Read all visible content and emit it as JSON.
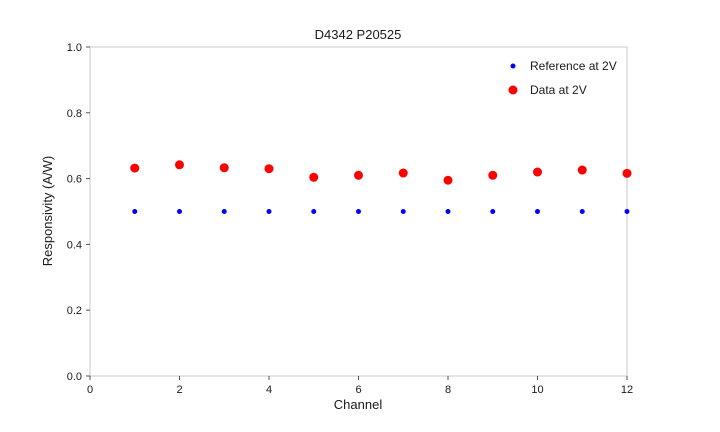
{
  "chart_data": {
    "type": "scatter",
    "title": "D4342 P20525",
    "xlabel": "Channel",
    "ylabel": "Responsivity (A/W)",
    "xlim": [
      0,
      12
    ],
    "ylim": [
      0.0,
      1.0
    ],
    "xticks": [
      0,
      2,
      4,
      6,
      8,
      10,
      12
    ],
    "yticks": [
      0.0,
      0.2,
      0.4,
      0.6,
      0.8,
      1.0
    ],
    "grid": false,
    "legend_position": "upper right",
    "x": [
      1,
      2,
      3,
      4,
      5,
      6,
      7,
      8,
      9,
      10,
      11,
      12
    ],
    "series": [
      {
        "name": "Reference at 2V",
        "color": "#0000ff",
        "marker_radius": 2.5,
        "values": [
          0.5,
          0.5,
          0.5,
          0.5,
          0.5,
          0.5,
          0.5,
          0.5,
          0.5,
          0.5,
          0.5,
          0.5
        ]
      },
      {
        "name": "Data at 2V",
        "color": "#ff0000",
        "marker_radius": 4.5,
        "values": [
          0.632,
          0.642,
          0.633,
          0.63,
          0.604,
          0.61,
          0.617,
          0.595,
          0.61,
          0.62,
          0.626,
          0.616
        ]
      }
    ]
  }
}
